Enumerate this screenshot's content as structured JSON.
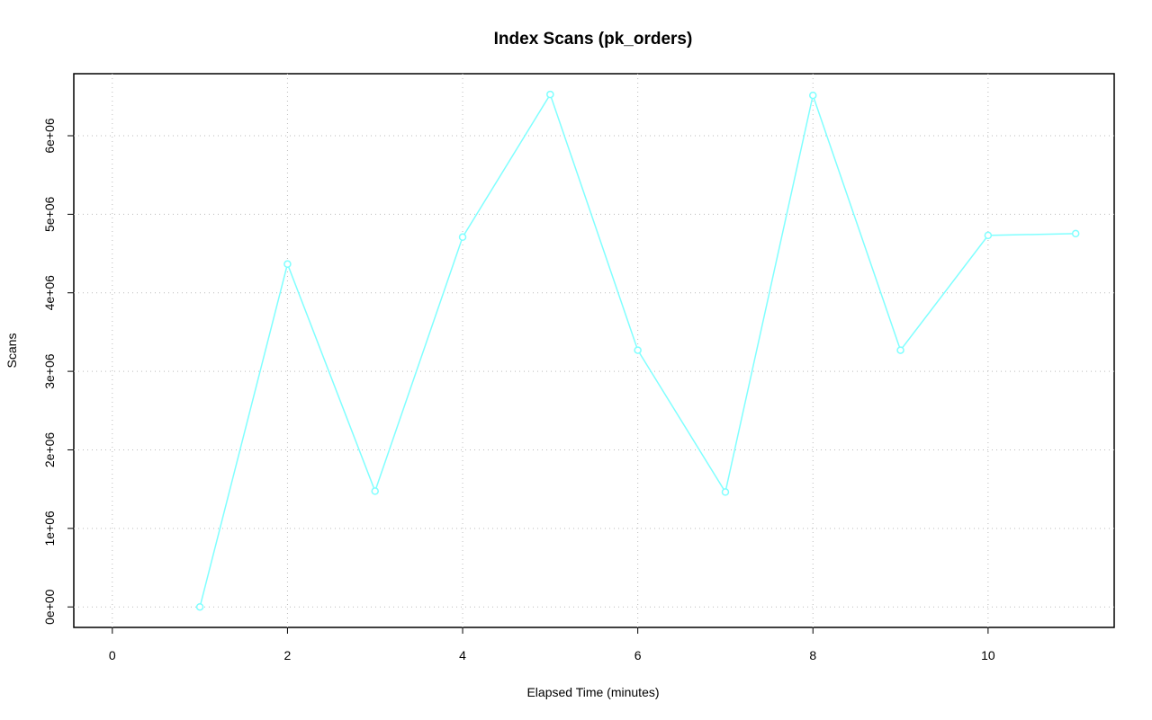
{
  "chart_data": {
    "type": "line",
    "title": "Index Scans (pk_orders)",
    "x_label": "Elapsed Time (minutes)",
    "y_label": "Scans",
    "x": [
      1,
      2,
      3,
      4,
      5,
      6,
      7,
      8,
      9,
      10,
      11
    ],
    "series": [
      {
        "name": "Scans",
        "color": "#80ffff",
        "values": [
          0,
          4366000,
          1474000,
          4709000,
          6526000,
          3269000,
          1463000,
          6514000,
          3269000,
          4731000,
          4754000
        ]
      }
    ],
    "xlim": [
      -0.44,
      11.44
    ],
    "xticks": [
      0,
      2,
      4,
      6,
      8,
      10
    ],
    "ylim": [
      -261000,
      6790000
    ],
    "yticks": [
      {
        "value": 0,
        "label": "0e+00"
      },
      {
        "value": 1000000,
        "label": "1e+06"
      },
      {
        "value": 2000000,
        "label": "2e+06"
      },
      {
        "value": 3000000,
        "label": "3e+06"
      },
      {
        "value": 4000000,
        "label": "4e+06"
      },
      {
        "value": 5000000,
        "label": "5e+06"
      },
      {
        "value": 6000000,
        "label": "6e+06"
      }
    ],
    "grid": true
  }
}
